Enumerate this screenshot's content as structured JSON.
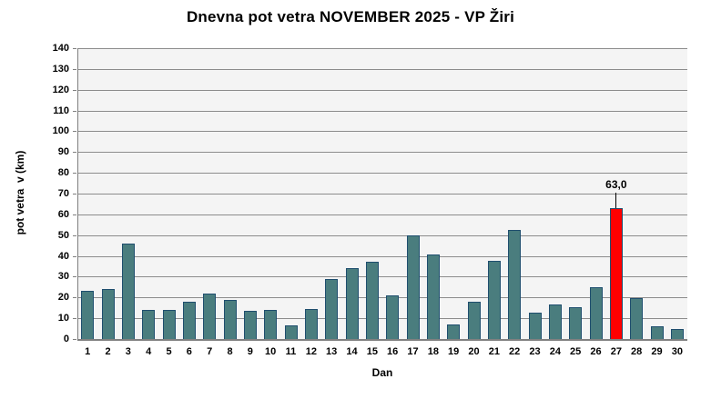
{
  "chart_data": {
    "type": "bar",
    "title": "Dnevna pot vetra NOVEMBER 2025 - VP Žiri",
    "xlabel": "Dan",
    "ylabel": "pot vetra  v (km)",
    "categories": [
      "1",
      "2",
      "3",
      "4",
      "5",
      "6",
      "7",
      "8",
      "9",
      "10",
      "11",
      "12",
      "13",
      "14",
      "15",
      "16",
      "17",
      "18",
      "19",
      "20",
      "21",
      "22",
      "23",
      "24",
      "25",
      "26",
      "27",
      "28",
      "29",
      "30"
    ],
    "values": [
      23,
      24,
      46,
      14,
      14,
      18,
      22,
      19,
      13.5,
      14,
      6.5,
      14.5,
      29,
      34,
      37,
      21,
      50,
      40.5,
      7,
      18,
      37.5,
      52.5,
      12.5,
      16.5,
      15.5,
      25,
      63,
      19.5,
      6,
      5
    ],
    "ylim": [
      0,
      140
    ],
    "ytick_step": 10,
    "grid": true,
    "legend": false,
    "highlight": {
      "category": "27",
      "value": 63.0,
      "label": "63,0"
    },
    "colors": {
      "bar_fill": "#4A7D7E",
      "bar_border": "#1F4E6E",
      "highlight_fill": "#FF0000",
      "gridline": "#8C8C8C",
      "axis": "#808080",
      "plot_bg": "#F4F4F4",
      "text": "#000000",
      "annotation_leader": "#000000"
    }
  }
}
